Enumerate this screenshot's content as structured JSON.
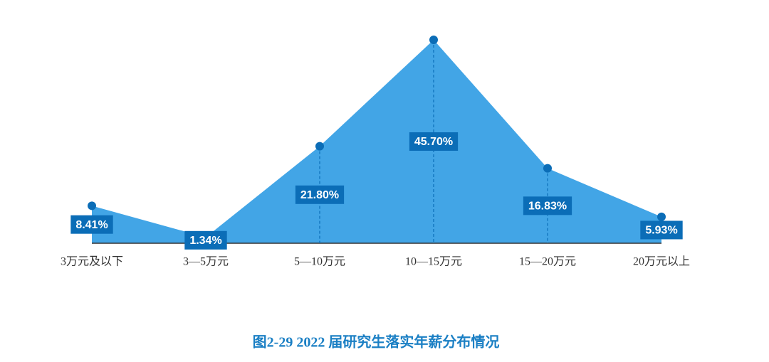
{
  "chart_data": {
    "type": "area",
    "title": "图2-29  2022 届研究生落实年薪分布情况",
    "categories": [
      "3万元及以下",
      "3—5万元",
      "5—10万元",
      "10—15万元",
      "15—20万元",
      "20万元以上"
    ],
    "values": [
      8.41,
      1.34,
      21.8,
      45.7,
      16.83,
      5.93
    ],
    "value_labels": [
      "8.41%",
      "1.34%",
      "21.80%",
      "45.70%",
      "16.83%",
      "5.93%"
    ],
    "color": "#42a5e6",
    "marker_color": "#0b6db7"
  }
}
